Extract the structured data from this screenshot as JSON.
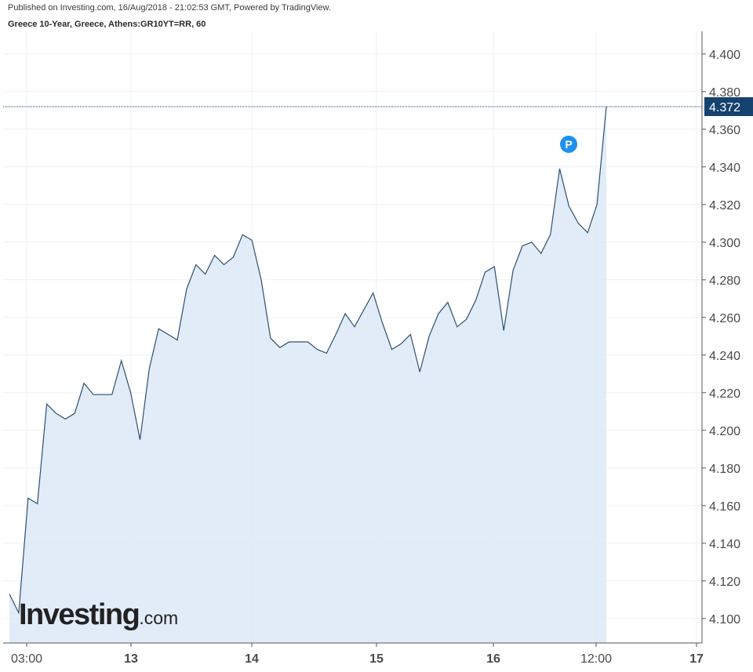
{
  "header": {
    "published": "Published on Investing.com, 16/Aug/2018 - 21:02:53 GMT, Powered by TradingView.",
    "instrument": "Greece 10-Year, Greece, Athens:GR10YT=RR, 60"
  },
  "watermark": {
    "brand": "Investing",
    "suffix": ".com"
  },
  "chart_data": {
    "type": "area",
    "title": "",
    "xlabel": "",
    "ylabel": "",
    "ylim": [
      4.087,
      4.412
    ],
    "grid": true,
    "last_value": 4.372,
    "last_value_label": "4.372",
    "y_ticks": [
      "4.400",
      "4.380",
      "4.360",
      "4.340",
      "4.320",
      "4.300",
      "4.280",
      "4.260",
      "4.240",
      "4.220",
      "4.200",
      "4.180",
      "4.160",
      "4.140",
      "4.120",
      "4.100"
    ],
    "x_ticks": [
      "03:00",
      "13",
      "14",
      "15",
      "16",
      "12:00",
      "17"
    ],
    "marker": {
      "label": "P",
      "value": 4.352
    },
    "colors": {
      "line": "#2f4f6f",
      "fill": "#dce9f7",
      "badge": "#15426e",
      "marker": "#1e90f0"
    },
    "series": [
      {
        "values": [
          4.113,
          4.103,
          4.164,
          4.161,
          4.214,
          4.209,
          4.206,
          4.209,
          4.225,
          4.219,
          4.219,
          4.219,
          4.237,
          4.22,
          4.195,
          4.233,
          4.254,
          4.251,
          4.248,
          4.275,
          4.288,
          4.283,
          4.293,
          4.288,
          4.292,
          4.304,
          4.301,
          4.28,
          4.249,
          4.244,
          4.247,
          4.247,
          4.247,
          4.243,
          4.241,
          4.251,
          4.262,
          4.255,
          4.264,
          4.273,
          4.257,
          4.243,
          4.246,
          4.251,
          4.231,
          4.25,
          4.262,
          4.268,
          4.255,
          4.259,
          4.269,
          4.284,
          4.287,
          4.253,
          4.285,
          4.298,
          4.3,
          4.294,
          4.304,
          4.339,
          4.319,
          4.31,
          4.305,
          4.32,
          4.372
        ]
      }
    ]
  }
}
